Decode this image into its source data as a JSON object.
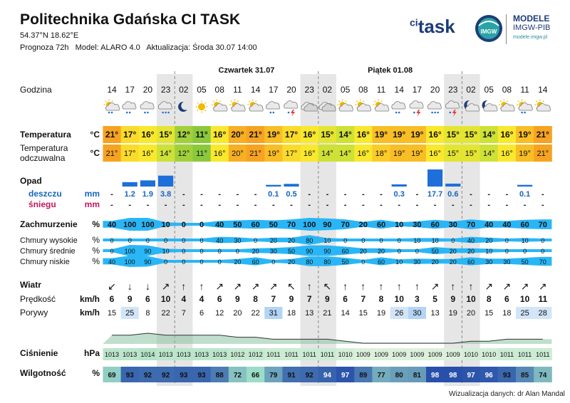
{
  "header": {
    "title": "Politechnika Gdańska CI TASK",
    "coords": "54.37°N  18.62°E",
    "forecast": "Prognoza 72h",
    "model": "Model:  ALARO 4.0",
    "update": "Aktualizacja:  Środa 30.07 14:00",
    "logo_ci": "ci",
    "logo_task": "task",
    "logo_imgw": "IMGW",
    "logo_modele": "MODELE",
    "logo_modele_sub": "IMGW-PIB",
    "logo_url": "modele.imgw.pl"
  },
  "days": [
    {
      "label": "Czwartek 31.07",
      "col_start": 4
    },
    {
      "label": "Piątek 01.08",
      "col_start": 12
    }
  ],
  "hours": [
    "14",
    "17",
    "20",
    "23",
    "02",
    "05",
    "08",
    "11",
    "14",
    "17",
    "20",
    "23",
    "02",
    "05",
    "08",
    "11",
    "14",
    "17",
    "20",
    "23",
    "02",
    "05",
    "08",
    "11",
    "14"
  ],
  "icons": [
    "partly-sunny-rain-icon",
    "cloud-rain-icon",
    "cloud-rain-icon",
    "cloud-heavy-rain-icon",
    "moon-icon",
    "sun-icon",
    "partly-sunny-icon",
    "partly-sunny-icon",
    "partly-sunny-icon",
    "cloud-rain-icon",
    "cloud-storm-icon",
    "cloud-icon",
    "cloud-icon",
    "partly-sunny-icon",
    "partly-sunny-icon",
    "partly-sunny-icon",
    "cloud-rain-icon",
    "cloud-storm-icon",
    "cloud-heavy-rain-icon",
    "cloud-storm-icon",
    "moon-cloud-icon",
    "moon-cloud-icon",
    "partly-sunny-icon",
    "partly-sunny-rain-icon",
    "partly-sunny-icon"
  ],
  "labels": {
    "godzina": "Godzina",
    "temperatura": "Temperatura",
    "odczuwalna_1": "Temperatura",
    "odczuwalna_2": "odczuwalna",
    "deg": "°C",
    "opad": "Opad",
    "deszczu": "deszczu",
    "sniegu": "śniegu",
    "mm": "mm",
    "zachmurzenie": "Zachmurzenie",
    "pct": "%",
    "chmury_wysokie": "Chmury wysokie",
    "chmury_srednie": "Chmury średnie",
    "chmury_niskie": "Chmury niskie",
    "wiatr": "Wiatr",
    "predkosc": "Prędkość",
    "porywy": "Porywy",
    "kmh": "km/h",
    "cisnienie": "Ciśnienie",
    "hpa": "hPa",
    "wilgotnosc": "Wilgotność"
  },
  "temperature": [
    "21°",
    "17°",
    "16°",
    "15°",
    "12°",
    "11°",
    "16°",
    "20°",
    "21°",
    "19°",
    "17°",
    "16°",
    "15°",
    "14°",
    "16°",
    "19°",
    "19°",
    "19°",
    "16°",
    "15°",
    "15°",
    "14°",
    "16°",
    "19°",
    "21°"
  ],
  "feels_like": [
    "21°",
    "17°",
    "16°",
    "14°",
    "12°",
    "11°",
    "16°",
    "20°",
    "21°",
    "19°",
    "17°",
    "16°",
    "14°",
    "14°",
    "16°",
    "18°",
    "19°",
    "19°",
    "16°",
    "15°",
    "15°",
    "14°",
    "16°",
    "19°",
    "21°"
  ],
  "rain": [
    "-",
    "1.2",
    "1.9",
    "3.8",
    "-",
    "-",
    "-",
    "-",
    "-",
    "0.1",
    "0.5",
    "-",
    "-",
    "-",
    "-",
    "-",
    "0.3",
    "-",
    "17.7",
    "0.6",
    "-",
    "-",
    "-",
    "0.1",
    "-"
  ],
  "snow": [
    "-",
    "-",
    "-",
    "-",
    "-",
    "-",
    "-",
    "-",
    "-",
    "-",
    "-",
    "-",
    "-",
    "-",
    "-",
    "-",
    "-",
    "-",
    "-",
    "-",
    "-",
    "-",
    "-",
    "-",
    "-"
  ],
  "cloud_total": [
    40,
    100,
    100,
    10,
    0,
    0,
    40,
    50,
    60,
    50,
    70,
    100,
    90,
    70,
    20,
    60,
    10,
    30,
    60,
    30,
    70,
    40,
    40,
    60,
    70
  ],
  "cloud_high": [
    0,
    0,
    0,
    0,
    0,
    0,
    40,
    30,
    0,
    20,
    20,
    80,
    10,
    0,
    0,
    0,
    0,
    10,
    10,
    0,
    40,
    20,
    0,
    10,
    0
  ],
  "cloud_mid": [
    0,
    100,
    90,
    10,
    0,
    0,
    0,
    0,
    20,
    30,
    50,
    90,
    90,
    60,
    20,
    20,
    0,
    0,
    50,
    20,
    20,
    10,
    0,
    0,
    0
  ],
  "cloud_low": [
    40,
    100,
    90,
    0,
    0,
    0,
    0,
    20,
    60,
    0,
    20,
    80,
    80,
    50,
    0,
    60,
    10,
    30,
    20,
    20,
    60,
    30,
    30,
    50,
    70
  ],
  "wind_dir": [
    "↙",
    "↓",
    "↓",
    "↗",
    "↑",
    "↑",
    "↗",
    "↗",
    "↗",
    "↗",
    "↖",
    "↑",
    "↖",
    "↑",
    "↑",
    "↑",
    "↑",
    "↑",
    "↗",
    "↑",
    "↑",
    "↗",
    "↗",
    "↗",
    "↗"
  ],
  "wind_speed": [
    6,
    9,
    6,
    10,
    4,
    4,
    6,
    9,
    8,
    7,
    9,
    7,
    9,
    6,
    7,
    8,
    10,
    3,
    5,
    9,
    10,
    8,
    6,
    10,
    11
  ],
  "gusts": [
    15,
    25,
    8,
    22,
    7,
    6,
    12,
    20,
    22,
    31,
    18,
    13,
    21,
    14,
    15,
    19,
    26,
    30,
    13,
    19,
    20,
    15,
    18,
    25,
    28
  ],
  "pressure": [
    1013,
    1013,
    1014,
    1013,
    1013,
    1013,
    1013,
    1012,
    1012,
    1011,
    1011,
    1011,
    1011,
    1010,
    1009,
    1009,
    1009,
    1009,
    1009,
    1009,
    1010,
    1010,
    1011,
    1011,
    1011
  ],
  "humidity": [
    69,
    93,
    92,
    92,
    93,
    93,
    88,
    72,
    66,
    79,
    91,
    92,
    94,
    97,
    89,
    77,
    80,
    81,
    98,
    98,
    97,
    96,
    93,
    85,
    74
  ],
  "footer": {
    "credit": "Wizualizacja danych: dr Alan Mandal"
  }
}
